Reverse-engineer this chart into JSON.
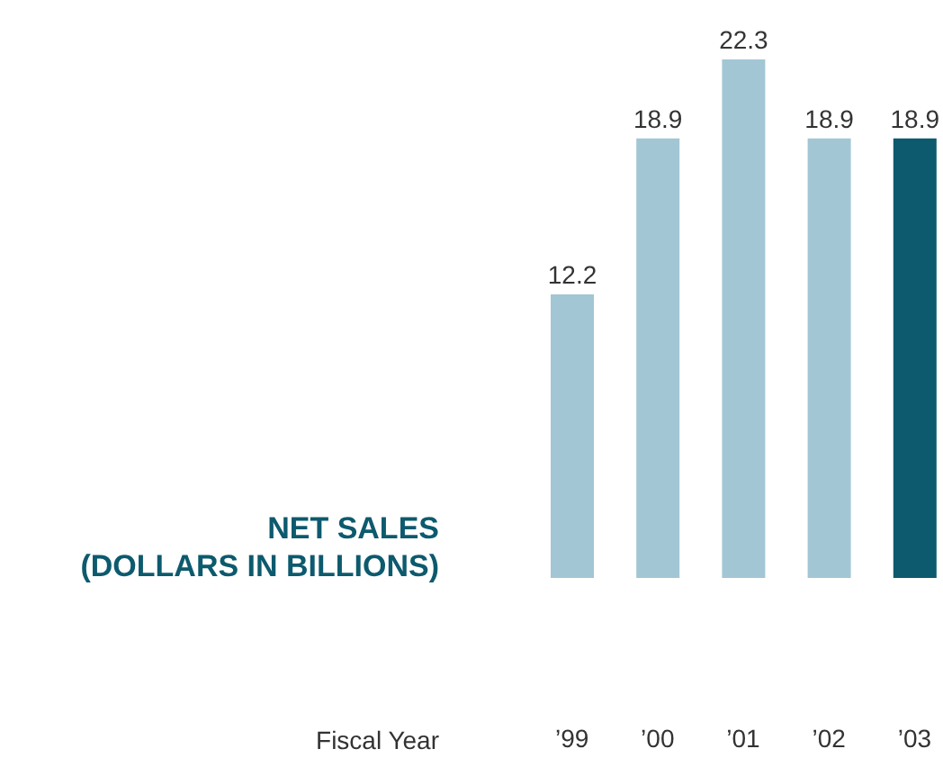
{
  "chart_data": {
    "type": "bar",
    "title": "NET SALES\n(DOLLARS IN BILLIONS)",
    "xlabel": "Fiscal Year",
    "categories": [
      "’99",
      "’00",
      "’01",
      "’02",
      "’03"
    ],
    "values": [
      12.2,
      18.9,
      22.3,
      18.9,
      18.9
    ],
    "colors": [
      "#a3c6d4",
      "#a3c6d4",
      "#a3c6d4",
      "#a3c6d4",
      "#0d5a6e"
    ],
    "data_labels": true,
    "grid": false,
    "legend": false
  }
}
